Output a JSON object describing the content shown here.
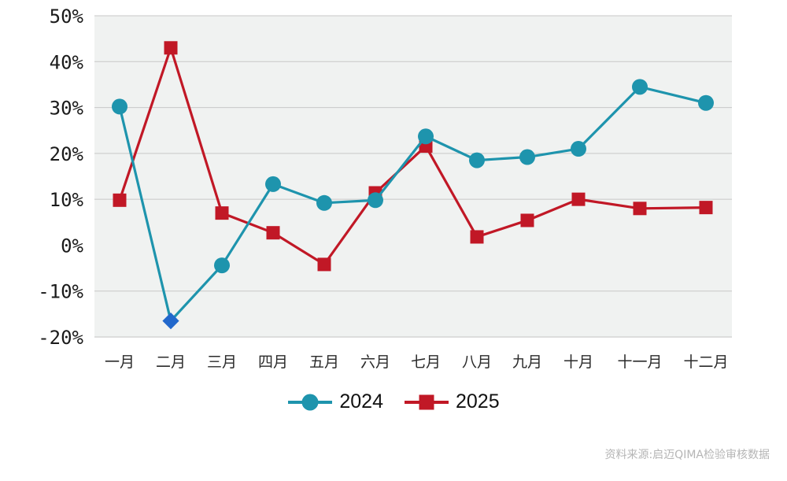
{
  "source_note": "资料来源:启迈QIMA检验审核数据",
  "colors": {
    "plot_bg": "#F0F2F1",
    "gridline": "#C8C8C8",
    "axis_text": "#1B1B1B",
    "month_text": "#2A2A2A",
    "legend_text": "#111111",
    "source_text": "#B5B5B5",
    "series_2024": "#1E94AD",
    "series_2025": "#C11826",
    "highlight_diamond": "#2268CC"
  },
  "chart_data": {
    "type": "line",
    "title": "",
    "xlabel": "",
    "ylabel": "",
    "categories": [
      "一月",
      "二月",
      "三月",
      "四月",
      "五月",
      "六月",
      "七月",
      "八月",
      "九月",
      "十月",
      "十一月",
      "十二月"
    ],
    "series": [
      {
        "name": "2024",
        "color": "#1E94AD",
        "marker": "circle",
        "values": [
          30.2,
          -16.5,
          -4.4,
          13.3,
          9.2,
          9.8,
          23.7,
          18.5,
          19.2,
          21.0,
          34.5,
          31.0
        ],
        "special_points": [
          {
            "index": 1,
            "marker": "diamond",
            "color": "#2268CC"
          }
        ]
      },
      {
        "name": "2025",
        "color": "#C11826",
        "marker": "square",
        "values": [
          9.8,
          43.0,
          7.0,
          2.7,
          -4.2,
          11.4,
          21.6,
          1.8,
          5.4,
          10.0,
          8.0,
          8.2
        ]
      }
    ],
    "yticks": [
      50,
      40,
      30,
      20,
      10,
      0,
      -10,
      -20
    ],
    "ytick_labels": [
      "50%",
      "40%",
      "30%",
      "20%",
      "10%",
      "0%",
      "-10%",
      "-20%"
    ],
    "gridlines": [
      50,
      40,
      30,
      20,
      10,
      -10,
      -20
    ],
    "ylim": [
      -20,
      50
    ],
    "grid": true,
    "legend_position": "bottom"
  }
}
